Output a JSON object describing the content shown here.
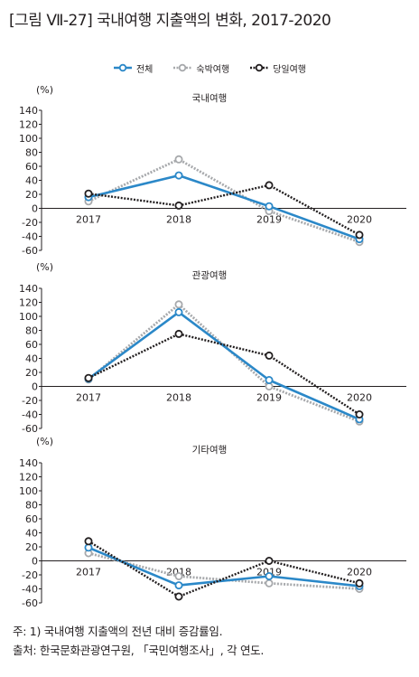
{
  "figure_title": "[그림 Ⅶ-27]  국내여행 지출액의 변화, 2017-2020",
  "colors": {
    "전체": "#2b88c8",
    "숙박여행": "#a7a9ac",
    "당일여행": "#231f20"
  },
  "legend": [
    {
      "name": "전체",
      "color": "#2b88c8",
      "style": "solid"
    },
    {
      "name": "숙박여행",
      "color": "#a7a9ac",
      "style": "dotted"
    },
    {
      "name": "당일여행",
      "color": "#231f20",
      "style": "dotted"
    }
  ],
  "chart_data": [
    {
      "type": "line",
      "title": "국내여행",
      "ylabel": "(%)",
      "x": [
        "2017",
        "2018",
        "2019",
        "2020"
      ],
      "ylim": [
        -60,
        140
      ],
      "yticks": [
        140,
        120,
        100,
        80,
        60,
        40,
        20,
        0,
        -20,
        -40,
        -60
      ],
      "series": [
        {
          "name": "전체",
          "values": [
            16,
            47,
            3,
            -44
          ]
        },
        {
          "name": "숙박여행",
          "values": [
            10,
            70,
            -4,
            -48
          ]
        },
        {
          "name": "당일여행",
          "values": [
            21,
            4,
            33,
            -38
          ]
        }
      ]
    },
    {
      "type": "line",
      "title": "관광여행",
      "ylabel": "(%)",
      "x": [
        "2017",
        "2018",
        "2019",
        "2020"
      ],
      "ylim": [
        -60,
        140
      ],
      "yticks": [
        140,
        120,
        100,
        80,
        60,
        40,
        20,
        0,
        -20,
        -40,
        -60
      ],
      "series": [
        {
          "name": "전체",
          "values": [
            11,
            106,
            9,
            -47
          ]
        },
        {
          "name": "숙박여행",
          "values": [
            10,
            117,
            0,
            -50
          ]
        },
        {
          "name": "당일여행",
          "values": [
            12,
            75,
            44,
            -40
          ]
        }
      ]
    },
    {
      "type": "line",
      "title": "기타여행",
      "ylabel": "(%)",
      "x": [
        "2017",
        "2018",
        "2019",
        "2020"
      ],
      "ylim": [
        -60,
        140
      ],
      "yticks": [
        140,
        120,
        100,
        80,
        60,
        40,
        20,
        0,
        -20,
        -40,
        -60
      ],
      "series": [
        {
          "name": "전체",
          "values": [
            19,
            -35,
            -22,
            -36
          ]
        },
        {
          "name": "숙박여행",
          "values": [
            11,
            -22,
            -32,
            -40
          ]
        },
        {
          "name": "당일여행",
          "values": [
            28,
            -51,
            0,
            -32
          ]
        }
      ]
    }
  ],
  "notes": {
    "note": "주: 1) 국내여행 지출액의 전년 대비 증감률임.",
    "source": "출처: 한국문화관광연구원, 「국민여행조사」, 각 연도."
  }
}
